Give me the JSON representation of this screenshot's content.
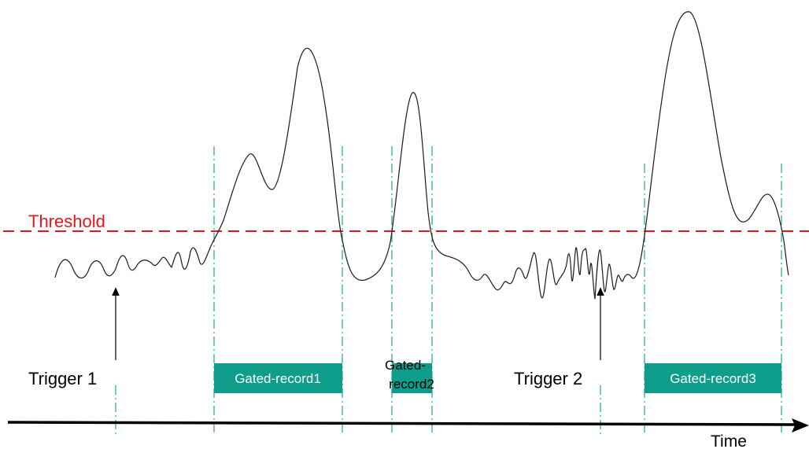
{
  "threshold": {
    "label": "Threshold",
    "color": "#e8141c"
  },
  "triggers": [
    {
      "label": "Trigger 1"
    },
    {
      "label": "Trigger 2"
    }
  ],
  "gated_records": [
    {
      "label_lines": [
        "Gated-record1"
      ]
    },
    {
      "label_lines": [
        "Gated-",
        "record2"
      ]
    },
    {
      "label_lines": [
        "Gated-record3"
      ]
    }
  ],
  "time_axis": {
    "label": "Time"
  },
  "colors": {
    "gate_fill": "#0e9d8a",
    "gate_line": "#1aa596",
    "signal": "#1a1a1a",
    "axis": "#000000"
  }
}
